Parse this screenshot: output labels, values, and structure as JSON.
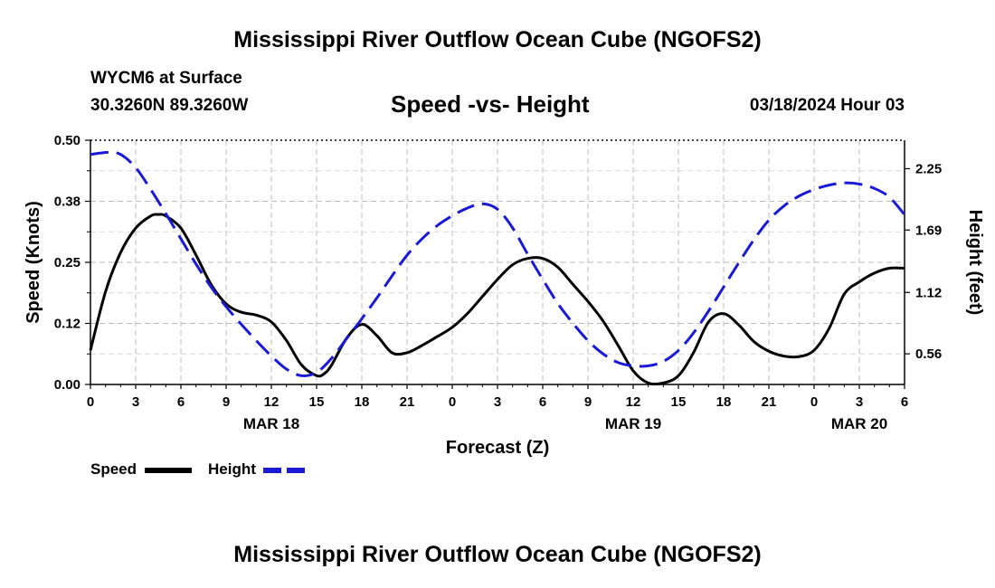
{
  "header": {
    "title": "Mississippi River Outflow Ocean Cube (NGOFS2)",
    "station": "WYCM6 at Surface",
    "coords": "30.3260N  89.3260W",
    "subtitle": "Speed -vs- Height",
    "datetime": "03/18/2024 Hour 03"
  },
  "footer": {
    "title": "Mississippi River Outflow Ocean Cube (NGOFS2)"
  },
  "colors": {
    "speed": "#000000",
    "height": "#1a1ad6",
    "grid": "#bbbbbb"
  },
  "chart_data": {
    "type": "line",
    "title": "Speed -vs- Height",
    "xlabel": "Forecast (Z)",
    "ylabel": "Speed (Knots)",
    "y2label": "Height (feet)",
    "xlim": [
      0,
      54
    ],
    "ylim": [
      0,
      0.5
    ],
    "y2lim": [
      0.28,
      2.51
    ],
    "x_ticks": [
      0,
      3,
      6,
      9,
      12,
      15,
      18,
      21,
      24,
      27,
      30,
      33,
      36,
      39,
      42,
      45,
      48,
      51,
      54
    ],
    "x_tick_labels": [
      "0",
      "3",
      "6",
      "9",
      "12",
      "15",
      "18",
      "21",
      "0",
      "3",
      "6",
      "9",
      "12",
      "15",
      "18",
      "21",
      "0",
      "3",
      "6"
    ],
    "date_labels": [
      {
        "x": 12,
        "label": "MAR 18"
      },
      {
        "x": 36,
        "label": "MAR 19"
      },
      {
        "x": 51,
        "label": "MAR 20"
      }
    ],
    "y_ticks": [
      0,
      0.125,
      0.25,
      0.375,
      0.5
    ],
    "y_tick_labels": [
      "0.00",
      "0.12",
      "0.25",
      "0.38",
      "0.50"
    ],
    "y2_ticks": [
      0.56,
      1.12,
      1.69,
      2.25
    ],
    "y2_tick_labels": [
      "0.56",
      "1.12",
      "1.69",
      "2.25"
    ],
    "series": [
      {
        "name": "Speed",
        "axis": "left",
        "style": "solid",
        "x": [
          0,
          1,
          2,
          3,
          4,
          4.5,
          5,
          6,
          7,
          8,
          9,
          10,
          11,
          12,
          13,
          14,
          15,
          15.5,
          16,
          17,
          18,
          19,
          20,
          21,
          22,
          23,
          24,
          25,
          26,
          27,
          28,
          29,
          30,
          31,
          32,
          33,
          34,
          35,
          36,
          37,
          38,
          39,
          40,
          41,
          42,
          43,
          44,
          45,
          46,
          47,
          48,
          49,
          50,
          51,
          52,
          53,
          54
        ],
        "values": [
          0.07,
          0.19,
          0.27,
          0.32,
          0.345,
          0.348,
          0.345,
          0.32,
          0.265,
          0.205,
          0.165,
          0.148,
          0.142,
          0.128,
          0.09,
          0.04,
          0.018,
          0.022,
          0.04,
          0.095,
          0.123,
          0.1,
          0.065,
          0.065,
          0.08,
          0.098,
          0.117,
          0.145,
          0.18,
          0.215,
          0.245,
          0.258,
          0.258,
          0.24,
          0.205,
          0.17,
          0.13,
          0.08,
          0.028,
          0.003,
          0.003,
          0.018,
          0.065,
          0.128,
          0.145,
          0.122,
          0.088,
          0.068,
          0.058,
          0.057,
          0.07,
          0.115,
          0.185,
          0.21,
          0.228,
          0.238,
          0.238
        ]
      },
      {
        "name": "Height",
        "axis": "right",
        "style": "dashed",
        "x": [
          0,
          1.2,
          2,
          3,
          4,
          5,
          6,
          7,
          8,
          9,
          10,
          11,
          12,
          13,
          14,
          15,
          16,
          17,
          18,
          19,
          20,
          21,
          22,
          23,
          24,
          25,
          26,
          27,
          28,
          29,
          30,
          31,
          32,
          33,
          34,
          35,
          36,
          37,
          38,
          39,
          40,
          41,
          42,
          43,
          44,
          45,
          46,
          47,
          48,
          49,
          50,
          51,
          52,
          53,
          54
        ],
        "values": [
          2.38,
          2.4,
          2.38,
          2.26,
          2.06,
          1.84,
          1.61,
          1.38,
          1.17,
          0.99,
          0.83,
          0.68,
          0.54,
          0.42,
          0.36,
          0.39,
          0.52,
          0.7,
          0.88,
          1.07,
          1.27,
          1.46,
          1.61,
          1.73,
          1.82,
          1.89,
          1.93,
          1.88,
          1.71,
          1.47,
          1.24,
          1.02,
          0.84,
          0.68,
          0.56,
          0.48,
          0.45,
          0.45,
          0.49,
          0.59,
          0.75,
          0.95,
          1.17,
          1.39,
          1.6,
          1.78,
          1.91,
          2.0,
          2.06,
          2.1,
          2.12,
          2.11,
          2.07,
          1.99,
          1.83
        ]
      }
    ],
    "legend": [
      {
        "label": "Speed",
        "style": "solid"
      },
      {
        "label": "Height",
        "style": "dashed"
      }
    ],
    "legend_position": "bottom-left",
    "grid": true
  }
}
